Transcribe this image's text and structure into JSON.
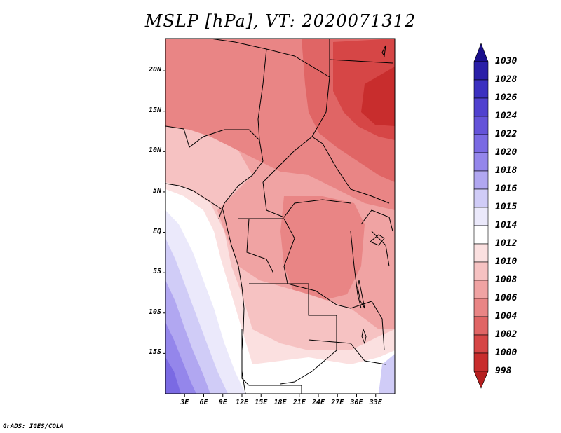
{
  "title": "MSLP [hPa], VT: 2020071312",
  "credit": "GrADS: IGES/COLA",
  "map": {
    "variable": "Mean sea level pressure",
    "units": "hPa",
    "lon_range": [
      0,
      36
    ],
    "lat_range": [
      -20,
      24
    ],
    "lat_ticks": [
      {
        "value": 20,
        "label": "20N"
      },
      {
        "value": 15,
        "label": "15N"
      },
      {
        "value": 10,
        "label": "10N"
      },
      {
        "value": 5,
        "label": "5N"
      },
      {
        "value": 0,
        "label": "EQ"
      },
      {
        "value": -5,
        "label": "5S"
      },
      {
        "value": -10,
        "label": "10S"
      },
      {
        "value": -15,
        "label": "15S"
      }
    ],
    "lon_ticks": [
      {
        "value": 3,
        "label": "3E"
      },
      {
        "value": 6,
        "label": "6E"
      },
      {
        "value": 9,
        "label": "9E"
      },
      {
        "value": 12,
        "label": "12E"
      },
      {
        "value": 15,
        "label": "15E"
      },
      {
        "value": 18,
        "label": "18E"
      },
      {
        "value": 21,
        "label": "21E"
      },
      {
        "value": 24,
        "label": "24E"
      },
      {
        "value": 27,
        "label": "27E"
      },
      {
        "value": 30,
        "label": "30E"
      },
      {
        "value": 33,
        "label": "33E"
      }
    ]
  },
  "colorbar": {
    "levels": [
      "1030",
      "1028",
      "1026",
      "1024",
      "1022",
      "1020",
      "1018",
      "1016",
      "1015",
      "1014",
      "1012",
      "1010",
      "1008",
      "1006",
      "1004",
      "1002",
      "1000",
      "998"
    ],
    "colors": [
      "#1a0f8c",
      "#2a1fa8",
      "#3b30c0",
      "#5041cf",
      "#6453d9",
      "#7a6ae3",
      "#9486eb",
      "#b1a7f1",
      "#d0ccf7",
      "#ebe9fb",
      "#ffffff",
      "#fbe0e0",
      "#f6c2c2",
      "#f0a3a3",
      "#e98585",
      "#e06565",
      "#d64646",
      "#c82d2d",
      "#b51f1f"
    ]
  }
}
